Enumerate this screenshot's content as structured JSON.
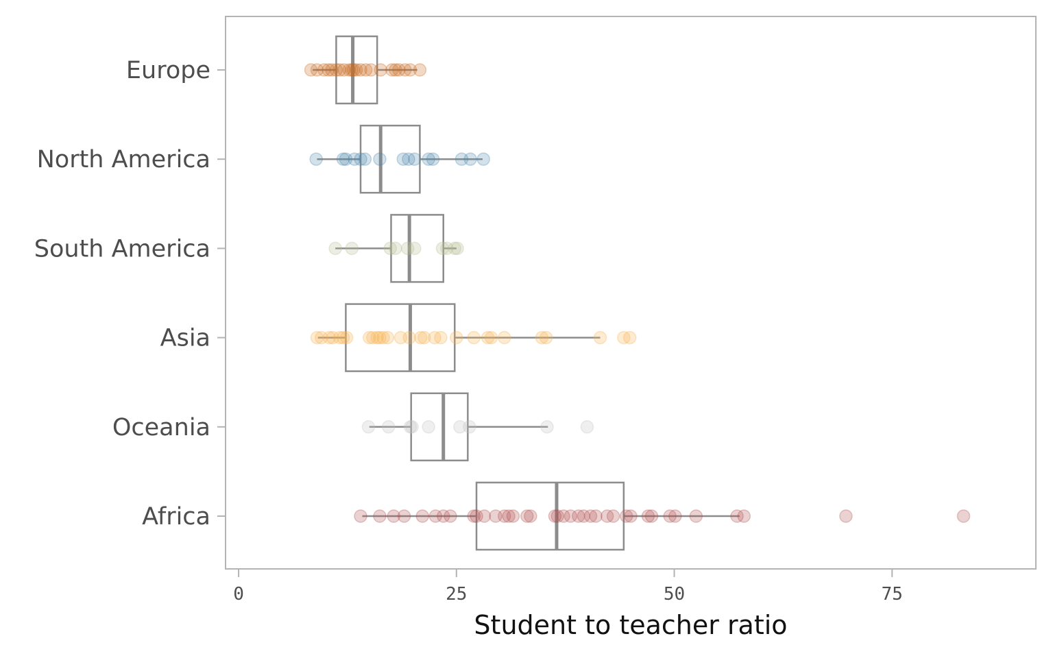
{
  "chart_data": {
    "type": "boxplot",
    "orientation": "horizontal",
    "xlabel": "Student to teacher ratio",
    "ylabel": "",
    "xlim": [
      -1.5,
      91.5
    ],
    "xticks": [
      0,
      25,
      50,
      75
    ],
    "xtick_labels": [
      "0",
      "25",
      "50",
      "75"
    ],
    "grid": false,
    "legend": "none",
    "categories": [
      "Europe",
      "North America",
      "South America",
      "Asia",
      "Oceania",
      "Africa"
    ],
    "series": [
      {
        "name": "Europe",
        "color": "#c8661b",
        "box": {
          "whisker_low": 8.5,
          "q1": 11.2,
          "median": 13.1,
          "q3": 15.9,
          "whisker_high": 20.5
        },
        "points": [
          8.3,
          9.0,
          9.8,
          10.3,
          10.7,
          11.2,
          11.6,
          12.1,
          12.7,
          13.0,
          13.2,
          13.5,
          14.0,
          14.6,
          15.2,
          16.3,
          17.6,
          18.0,
          18.4,
          19.1,
          19.7,
          20.8
        ]
      },
      {
        "name": "North America",
        "color": "#4a86ad",
        "box": {
          "whisker_low": 9.0,
          "q1": 14.0,
          "median": 16.3,
          "q3": 20.8,
          "whisker_high": 28.0
        },
        "points": [
          8.9,
          12.0,
          12.3,
          13.3,
          14.0,
          14.5,
          16.2,
          18.9,
          19.5,
          20.2,
          21.8,
          22.3,
          25.6,
          26.6,
          28.1
        ]
      },
      {
        "name": "South America",
        "color": "#b3bd8e",
        "box": {
          "whisker_low": 11.1,
          "q1": 17.5,
          "median": 19.6,
          "q3": 23.5,
          "whisker_high": 25.0
        },
        "points": [
          11.1,
          13.0,
          17.4,
          18.0,
          19.4,
          20.2,
          23.4,
          23.9,
          24.8,
          25.1
        ]
      },
      {
        "name": "Asia",
        "color": "#f9b14d",
        "box": {
          "whisker_low": 9.1,
          "q1": 12.3,
          "median": 19.7,
          "q3": 24.8,
          "whisker_high": 41.5
        },
        "points": [
          9.0,
          9.5,
          10.4,
          10.8,
          11.6,
          12.0,
          12.4,
          15.0,
          15.4,
          15.9,
          16.2,
          16.6,
          17.1,
          18.6,
          19.6,
          20.9,
          21.3,
          22.5,
          23.2,
          25.0,
          27.0,
          28.6,
          29.0,
          30.5,
          34.8,
          35.3,
          41.5,
          44.2,
          44.9
        ]
      },
      {
        "name": "Oceania",
        "color": "#bfbfbf",
        "box": {
          "whisker_low": 15.0,
          "q1": 19.8,
          "median": 23.5,
          "q3": 26.3,
          "whisker_high": 35.5
        },
        "points": [
          14.9,
          17.2,
          19.7,
          19.9,
          21.8,
          25.4,
          26.5,
          35.4,
          40.0
        ]
      },
      {
        "name": "Africa",
        "color": "#b04a4a",
        "box": {
          "whisker_low": 14.2,
          "q1": 27.3,
          "median": 36.5,
          "q3": 44.2,
          "whisker_high": 57.5
        },
        "points": [
          14.0,
          16.2,
          17.8,
          19.0,
          21.1,
          22.6,
          23.5,
          24.3,
          27.0,
          27.3,
          28.2,
          29.5,
          30.5,
          31.0,
          31.5,
          33.1,
          33.5,
          36.3,
          36.6,
          37.3,
          38.1,
          39.0,
          39.6,
          40.4,
          41.0,
          42.3,
          43.0,
          44.5,
          45.0,
          47.0,
          47.4,
          49.5,
          50.1,
          52.5,
          57.2,
          58.0,
          69.7,
          83.2
        ]
      }
    ]
  }
}
